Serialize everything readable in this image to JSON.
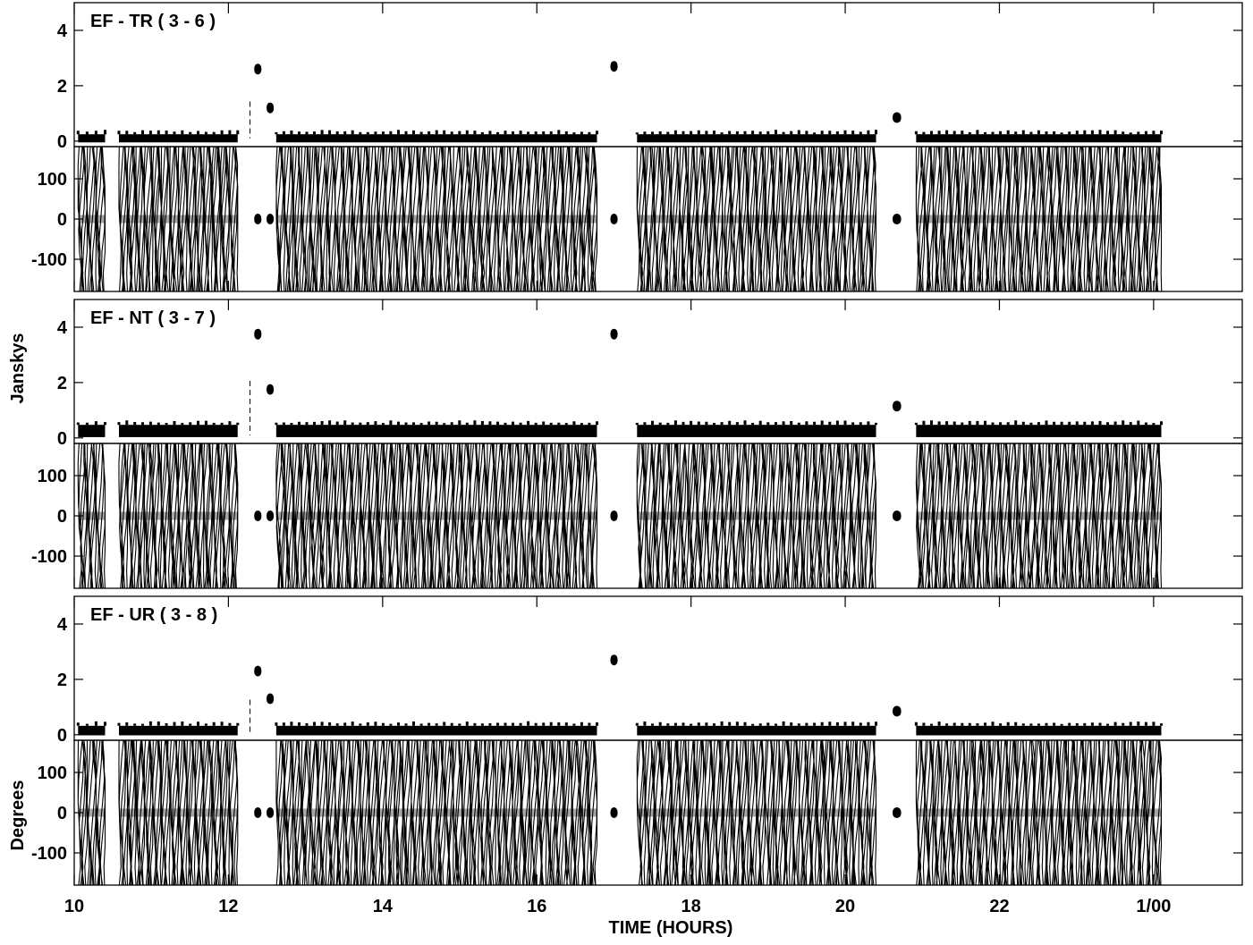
{
  "chart_data": {
    "type": "line",
    "figure_type": "AIPS VPLOT amplitude/phase versus time",
    "xlabel": "TIME (HOURS)",
    "x_unit": "hours",
    "xlim": [
      10.0,
      25.15
    ],
    "x_ticks": [
      10,
      12,
      14,
      16,
      18,
      20,
      22,
      24
    ],
    "x_tick_labels": [
      "10",
      "12",
      "14",
      "16",
      "18",
      "20",
      "22",
      "1/00"
    ],
    "ylabel_amplitude": "Janskys",
    "ylabel_phase": "Degrees",
    "amplitude_ylim": [
      -0.2,
      5.0
    ],
    "amplitude_ticks": [
      0,
      2,
      4
    ],
    "phase_ylim": [
      -180,
      180
    ],
    "phase_ticks": [
      -100,
      0,
      100
    ],
    "grid": false,
    "legend": "none",
    "target_scans": [
      [
        10.05,
        10.4
      ],
      [
        10.58,
        12.12
      ],
      [
        12.62,
        16.78
      ],
      [
        17.3,
        20.4
      ],
      [
        20.92,
        24.1
      ]
    ],
    "calibrator_scans": [
      {
        "start": 12.3,
        "end": 12.44,
        "slot": 0
      },
      {
        "start": 12.46,
        "end": 12.58,
        "slot": 1
      },
      {
        "start": 16.92,
        "end": 17.06,
        "slot": 2
      },
      {
        "start": 20.58,
        "end": 20.76,
        "slot": 3
      }
    ],
    "panels": [
      {
        "label": "EF - TR ( 3 - 6 )",
        "baseline": "EF-TR",
        "antennas": [
          3,
          6
        ],
        "target_amplitude_jy": 0.1,
        "calibrator_amplitudes_jy": [
          2.6,
          1.2,
          2.7,
          0.85
        ],
        "calibrator_phase_deg": 0
      },
      {
        "label": "EF - NT ( 3 - 7 )",
        "baseline": "EF-NT",
        "antennas": [
          3,
          7
        ],
        "target_amplitude_jy": 0.25,
        "calibrator_amplitudes_jy": [
          3.75,
          1.75,
          3.75,
          1.15
        ],
        "calibrator_phase_deg": 0
      },
      {
        "label": "EF - UR ( 3 - 8 )",
        "baseline": "EF-UR",
        "antennas": [
          3,
          8
        ],
        "target_amplitude_jy": 0.15,
        "calibrator_amplitudes_jy": [
          2.3,
          1.3,
          2.7,
          0.85
        ],
        "calibrator_phase_deg": 0
      }
    ]
  }
}
